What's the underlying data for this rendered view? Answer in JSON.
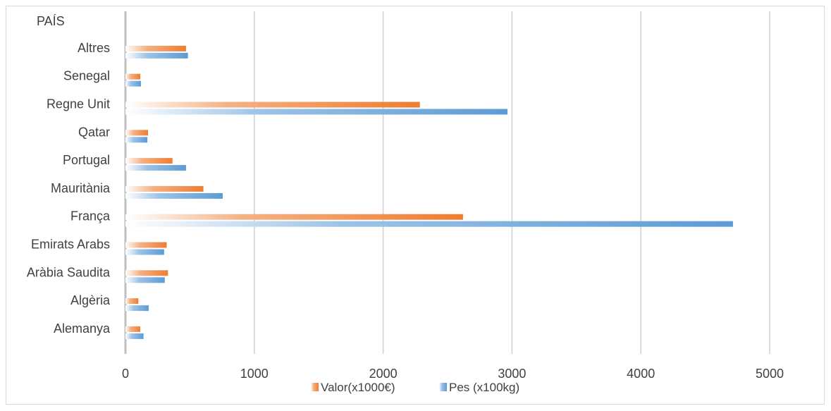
{
  "chart_data": {
    "type": "bar",
    "orientation": "horizontal",
    "ylabel": "PAÍS",
    "categories": [
      "Alemanya",
      "Algèria",
      "Aràbia Saudita",
      "Emirats Arabs",
      "França",
      "Mauritània",
      "Portugal",
      "Qatar",
      "Regne Unit",
      "Senegal",
      "Altres"
    ],
    "series": [
      {
        "name": "Valor(x1000€)",
        "color": "#ed7d31",
        "values": [
          115,
          100,
          330,
          320,
          2620,
          605,
          365,
          175,
          2285,
          115,
          470
        ]
      },
      {
        "name": "Pes (x100kg)",
        "color": "#5b9bd5",
        "values": [
          140,
          180,
          305,
          300,
          4715,
          755,
          470,
          170,
          2965,
          120,
          485
        ]
      }
    ],
    "xlim": [
      0,
      5000
    ],
    "xticks": [
      "0",
      "1000",
      "2000",
      "3000",
      "4000",
      "5000"
    ],
    "grid": true,
    "legend_position": "bottom"
  }
}
